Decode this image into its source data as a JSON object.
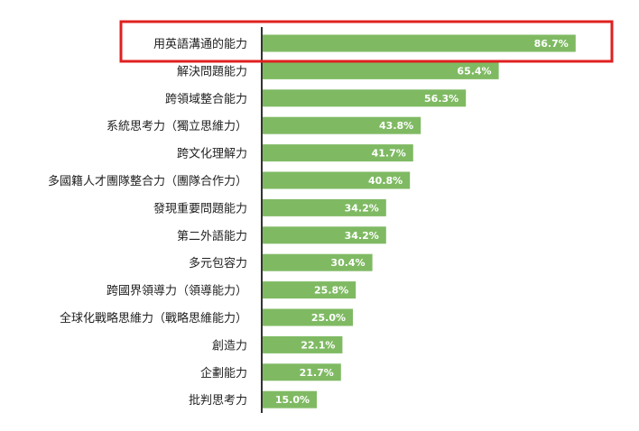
{
  "chart_data": {
    "type": "bar",
    "orientation": "horizontal",
    "categories": [
      "用英語溝通的能力",
      "解決問題能力",
      "跨領域整合能力",
      "系統思考力（獨立思維力）",
      "跨文化理解力",
      "多國籍人才團隊整合力（團隊合作力）",
      "發現重要問題能力",
      "第二外語能力",
      "多元包容力",
      "跨國界領導力（領導能力）",
      "全球化戰略思維力（戰略思維能力）",
      "創造力",
      "企劃能力",
      "批判思考力"
    ],
    "values": [
      86.7,
      65.4,
      56.3,
      43.8,
      41.7,
      40.8,
      34.2,
      34.2,
      30.4,
      25.8,
      25.0,
      22.1,
      21.7,
      15.0
    ],
    "value_labels": [
      "86.7%",
      "65.4%",
      "56.3%",
      "43.8%",
      "41.7%",
      "40.8%",
      "34.2%",
      "34.2%",
      "30.4%",
      "25.8%",
      "25.0%",
      "22.1%",
      "21.7%",
      "15.0%"
    ],
    "xlim": [
      0,
      100
    ],
    "highlighted_category_index": 0,
    "grid": false,
    "colors": {
      "bar": "#7fba63",
      "highlight_box": "#e02020",
      "axis": "#333333",
      "value_label": "#ffffff",
      "category_label": "#222222"
    }
  }
}
